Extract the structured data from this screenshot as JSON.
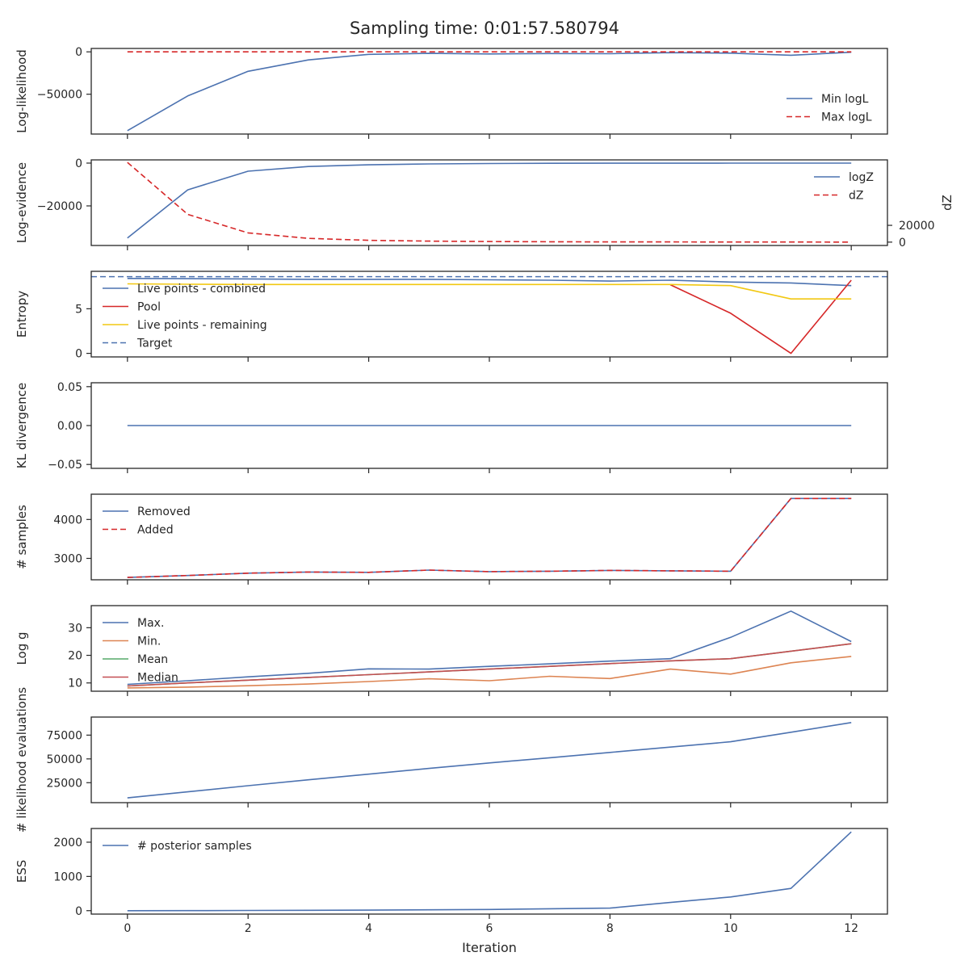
{
  "figure": {
    "title": "Sampling time: 0:01:57.580794",
    "xlabel": "Iteration"
  },
  "colors": {
    "blue": "#4c72b0",
    "red": "#d62728",
    "orange": "#dd8452",
    "green": "#55a868",
    "crimson": "#c44e52",
    "gold": "#f2c812",
    "axis": "#262626"
  },
  "chart_data": [
    {
      "type": "line",
      "ylabel": "Log-likelihood",
      "xlim": [
        -0.6,
        12.6
      ],
      "ylim": [
        -97000,
        4000
      ],
      "yticks": [
        0,
        -50000
      ],
      "ytick_labels": [
        "0",
        "−50000"
      ],
      "legend": "lower-right",
      "series": [
        {
          "name": "Min logL",
          "style": "solid",
          "color": "blue",
          "x": [
            0,
            1,
            2,
            3,
            4,
            5,
            6,
            7,
            8,
            9,
            10,
            11,
            12
          ],
          "values": [
            -93000,
            -52000,
            -23000,
            -9500,
            -3000,
            -1800,
            -2500,
            -2000,
            -2200,
            -1000,
            -1500,
            -4000,
            -500
          ]
        },
        {
          "name": "Max logL",
          "style": "dashed",
          "color": "red",
          "x": [
            0,
            1,
            2,
            3,
            4,
            5,
            6,
            7,
            8,
            9,
            10,
            11,
            12
          ],
          "values": [
            0,
            0,
            0,
            0,
            0,
            0,
            0,
            0,
            0,
            0,
            0,
            0,
            0
          ]
        }
      ]
    },
    {
      "type": "line",
      "ylabel": "Log-evidence",
      "y2label": "dZ",
      "xlim": [
        -0.6,
        12.6
      ],
      "ylim": [
        -38500,
        1500
      ],
      "y2lim": [
        -4000,
        98000
      ],
      "yticks": [
        0,
        -20000
      ],
      "ytick_labels": [
        "0",
        "−20000"
      ],
      "y2ticks": [
        0,
        20000
      ],
      "y2tick_labels": [
        "0",
        "20000"
      ],
      "legend": "upper-right",
      "series": [
        {
          "name": "logZ",
          "style": "solid",
          "color": "blue",
          "axis": "left",
          "x": [
            0,
            1,
            2,
            3,
            4,
            5,
            6,
            7,
            8,
            9,
            10,
            11,
            12
          ],
          "values": [
            -35000,
            -12500,
            -3800,
            -1600,
            -800,
            -400,
            -200,
            -100,
            -50,
            -30,
            -20,
            -10,
            -5
          ]
        },
        {
          "name": "dZ",
          "style": "dashed",
          "color": "red",
          "axis": "right",
          "x": [
            0,
            1,
            2,
            3,
            4,
            5,
            6,
            7,
            8,
            9,
            10,
            11,
            12
          ],
          "values": [
            95000,
            33000,
            11000,
            4500,
            2200,
            1200,
            700,
            400,
            250,
            200,
            150,
            100,
            50
          ]
        }
      ]
    },
    {
      "type": "line",
      "ylabel": "Entropy",
      "xlim": [
        -0.6,
        12.6
      ],
      "ylim": [
        -0.4,
        9.2
      ],
      "yticks": [
        0,
        5
      ],
      "ytick_labels": [
        "0",
        "5"
      ],
      "legend": "lower-left",
      "series": [
        {
          "name": "Live points - combined",
          "style": "solid",
          "color": "blue",
          "x": [
            0,
            1,
            2,
            3,
            4,
            5,
            6,
            7,
            8,
            9,
            10,
            11,
            12
          ],
          "values": [
            8.4,
            8.38,
            8.35,
            8.3,
            8.3,
            8.3,
            8.25,
            8.2,
            8.1,
            8.2,
            8.0,
            7.9,
            7.6
          ]
        },
        {
          "name": "Pool",
          "style": "solid",
          "color": "red",
          "x": [
            9,
            10,
            11,
            12
          ],
          "values": [
            7.7,
            4.5,
            0.0,
            8.2
          ]
        },
        {
          "name": "Live points - remaining",
          "style": "solid",
          "color": "gold",
          "x": [
            0,
            1,
            2,
            3,
            4,
            5,
            6,
            7,
            8,
            9,
            10,
            11,
            12
          ],
          "values": [
            7.8,
            7.75,
            7.72,
            7.72,
            7.72,
            7.72,
            7.72,
            7.72,
            7.72,
            7.72,
            7.6,
            6.1,
            6.1
          ]
        },
        {
          "name": "Target",
          "style": "dashed",
          "color": "blue",
          "hline": 8.6
        }
      ]
    },
    {
      "type": "line",
      "ylabel": "KL divergence",
      "xlim": [
        -0.6,
        12.6
      ],
      "ylim": [
        -0.055,
        0.055
      ],
      "yticks": [
        0.05,
        0.0,
        -0.05
      ],
      "ytick_labels": [
        "0.05",
        "0.00",
        "−0.05"
      ],
      "series": [
        {
          "name": "",
          "style": "solid",
          "color": "blue",
          "x": [
            0,
            1,
            2,
            3,
            4,
            5,
            6,
            7,
            8,
            9,
            10,
            11,
            12
          ],
          "values": [
            0,
            0,
            0,
            0,
            0,
            0,
            0,
            0,
            0,
            0,
            0,
            0,
            0
          ]
        }
      ]
    },
    {
      "type": "line",
      "ylabel": "# samples",
      "xlim": [
        -0.6,
        12.6
      ],
      "ylim": [
        2450,
        4650
      ],
      "yticks": [
        4000,
        3000
      ],
      "ytick_labels": [
        "4000",
        "3000"
      ],
      "legend": "upper-left",
      "series": [
        {
          "name": "Removed",
          "style": "solid",
          "color": "blue",
          "x": [
            0,
            1,
            2,
            3,
            4,
            5,
            6,
            7,
            8,
            9,
            10,
            11,
            12
          ],
          "values": [
            2510,
            2560,
            2620,
            2650,
            2640,
            2700,
            2660,
            2670,
            2690,
            2680,
            2670,
            4540,
            4540
          ]
        },
        {
          "name": "Added",
          "style": "dashed",
          "color": "red",
          "x": [
            0,
            1,
            2,
            3,
            4,
            5,
            6,
            7,
            8,
            9,
            10,
            11,
            12
          ],
          "values": [
            2510,
            2560,
            2620,
            2650,
            2640,
            2700,
            2660,
            2670,
            2690,
            2680,
            2670,
            4540,
            4540
          ]
        }
      ]
    },
    {
      "type": "line",
      "ylabel": "Log g",
      "xlim": [
        -0.6,
        12.6
      ],
      "ylim": [
        7,
        38
      ],
      "yticks": [
        30,
        20,
        10
      ],
      "ytick_labels": [
        "30",
        "20",
        "10"
      ],
      "legend": "upper-left",
      "series": [
        {
          "name": "Max.",
          "style": "solid",
          "color": "blue",
          "x": [
            0,
            1,
            2,
            3,
            4,
            5,
            6,
            7,
            8,
            9,
            10,
            11,
            12
          ],
          "values": [
            9.5,
            10.8,
            12.2,
            13.5,
            15.1,
            15.0,
            16.0,
            16.9,
            17.9,
            18.8,
            26.5,
            36.0,
            25.0
          ]
        },
        {
          "name": "Min.",
          "style": "solid",
          "color": "orange",
          "x": [
            0,
            1,
            2,
            3,
            4,
            5,
            6,
            7,
            8,
            9,
            10,
            11,
            12
          ],
          "values": [
            8.2,
            8.5,
            9.0,
            9.6,
            10.5,
            11.5,
            10.8,
            12.4,
            11.6,
            15.0,
            13.2,
            17.3,
            19.6
          ]
        },
        {
          "name": "Mean",
          "style": "solid",
          "color": "green",
          "x": [
            0,
            1,
            2,
            3,
            4,
            5,
            6,
            7,
            8,
            9,
            10,
            11,
            12
          ],
          "values": [
            8.9,
            10.0,
            11.0,
            12.0,
            13.0,
            14.0,
            15.0,
            16.0,
            17.0,
            18.0,
            18.8,
            21.5,
            24.2
          ]
        },
        {
          "name": "Median",
          "style": "solid",
          "color": "crimson",
          "x": [
            0,
            1,
            2,
            3,
            4,
            5,
            6,
            7,
            8,
            9,
            10,
            11,
            12
          ],
          "values": [
            8.9,
            10.0,
            11.0,
            12.0,
            13.0,
            14.0,
            15.0,
            16.0,
            17.0,
            18.0,
            18.8,
            21.5,
            24.2
          ]
        }
      ]
    },
    {
      "type": "line",
      "ylabel": "# likelihood evaluations",
      "xlim": [
        -0.6,
        12.6
      ],
      "ylim": [
        4000,
        94000
      ],
      "yticks": [
        75000,
        50000,
        25000
      ],
      "ytick_labels": [
        "75000",
        "50000",
        "25000"
      ],
      "series": [
        {
          "name": "",
          "style": "solid",
          "color": "blue",
          "x": [
            0,
            1,
            2,
            3,
            4,
            5,
            6,
            7,
            8,
            9,
            10,
            11,
            12
          ],
          "values": [
            9000,
            15400,
            21800,
            28000,
            34000,
            40000,
            45800,
            51200,
            56800,
            62400,
            68000,
            78000,
            88200
          ]
        }
      ]
    },
    {
      "type": "line",
      "ylabel": "ESS",
      "xlim": [
        -0.6,
        12.6
      ],
      "ylim": [
        -100,
        2400
      ],
      "yticks": [
        2000,
        1000,
        0
      ],
      "ytick_labels": [
        "2000",
        "1000",
        "0"
      ],
      "xticks": [
        0,
        2,
        4,
        6,
        8,
        10,
        12
      ],
      "xtick_labels": [
        "0",
        "2",
        "4",
        "6",
        "8",
        "10",
        "12"
      ],
      "legend": "upper-left",
      "series": [
        {
          "name": "# posterior samples",
          "style": "solid",
          "color": "blue",
          "x": [
            0,
            1,
            2,
            3,
            4,
            5,
            6,
            7,
            8,
            9,
            10,
            11,
            12
          ],
          "values": [
            0,
            2,
            5,
            10,
            15,
            25,
            35,
            55,
            75,
            240,
            400,
            650,
            2300
          ]
        }
      ]
    }
  ]
}
